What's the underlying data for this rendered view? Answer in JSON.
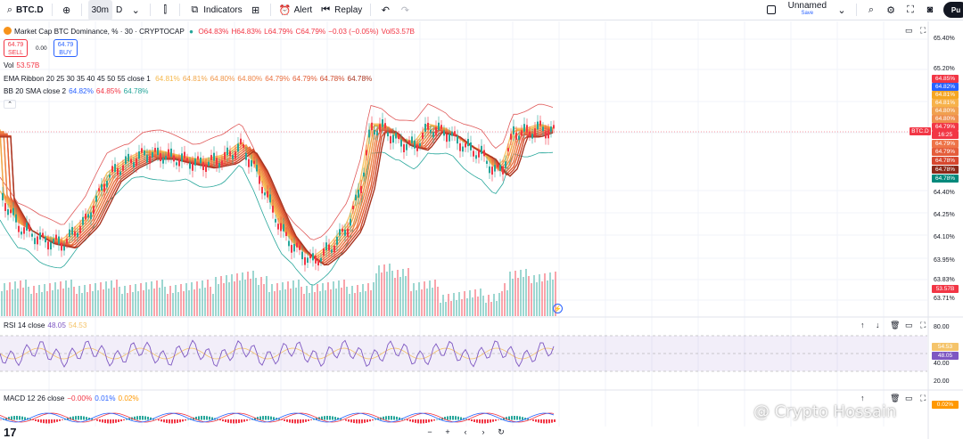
{
  "toolbar": {
    "symbol": "BTC.D",
    "interval": "30m",
    "timeframe": "D",
    "indicators": "Indicators",
    "alert": "Alert",
    "replay": "Replay",
    "layout_name": "Unnamed",
    "layout_sub": "Save",
    "publish": "Pu"
  },
  "legend": {
    "title": "Market Cap BTC Dominance, % · 30 · CRYPTOCAP",
    "open": "O64.83%",
    "high": "H64.83%",
    "low": "L64.79%",
    "close": "C64.79%",
    "change": "−0.03 (−0.05%)",
    "vol_inline": "Vol53.57B",
    "sell_price": "64.79",
    "sell_label": "SELL",
    "spread": "0.00",
    "buy_price": "64.79",
    "buy_label": "BUY",
    "vol_label": "Vol",
    "vol_value": "53.57B",
    "ema_label": "EMA Ribbon 20 25 30 35 40 45 50 55 close 1",
    "ema_values": [
      "64.81%",
      "64.81%",
      "64.80%",
      "64.80%",
      "64.79%",
      "64.79%",
      "64.78%",
      "64.78%"
    ],
    "bb_label": "BB 20 SMA close 2",
    "bb_values": [
      "64.82%",
      "64.85%",
      "64.78%"
    ],
    "rsi_label": "RSI 14 close",
    "rsi_values": [
      "48.05",
      "54.53"
    ],
    "macd_label": "MACD 12 26 close",
    "macd_values": [
      "−0.00%",
      "0.01%",
      "0.02%"
    ]
  },
  "price_axis": [
    "65.40%",
    "65.20%",
    "64.40%",
    "64.25%",
    "64.10%",
    "63.95%",
    "63.83%",
    "63.71%"
  ],
  "price_tags": [
    {
      "v": "64.85%",
      "c": "#f23645"
    },
    {
      "v": "64.82%",
      "c": "#2962ff"
    },
    {
      "v": "64.81%",
      "c": "#f5a623"
    },
    {
      "v": "64.81%",
      "c": "#f7b24a"
    },
    {
      "v": "64.80%",
      "c": "#f0a050"
    },
    {
      "v": "64.80%",
      "c": "#ef8f4f"
    },
    {
      "v": "64.79%",
      "c": "#f23645"
    },
    {
      "v": "16:25",
      "c": "#f23645"
    },
    {
      "v": "64.79%",
      "c": "#ee7448"
    },
    {
      "v": "64.79%",
      "c": "#e55d3a"
    },
    {
      "v": "64.78%",
      "c": "#d7472e"
    },
    {
      "v": "64.78%",
      "c": "#8c2a1a"
    },
    {
      "v": "64.78%",
      "c": "#00897b"
    }
  ],
  "symbol_tag": "BTC.D",
  "volume_tag": "53.57B",
  "rsi_axis": [
    "80.00",
    "40.00",
    "20.00"
  ],
  "rsi_tags": [
    {
      "v": "54.53",
      "c": "#f5c46a"
    },
    {
      "v": "48.05",
      "c": "#7e57c2"
    }
  ],
  "macd_axis": [],
  "macd_tags": [
    {
      "v": "0.02%",
      "c": "#ff9800"
    }
  ],
  "watermark": "@ Crypto Hossain",
  "colors": {
    "up": "#26a69a",
    "down": "#f23645",
    "bb": "#e05a5a",
    "bb_lower": "#26a69a",
    "rsi": "#7e57c2",
    "rsi_bg": "rgba(126,87,194,0.10)"
  }
}
